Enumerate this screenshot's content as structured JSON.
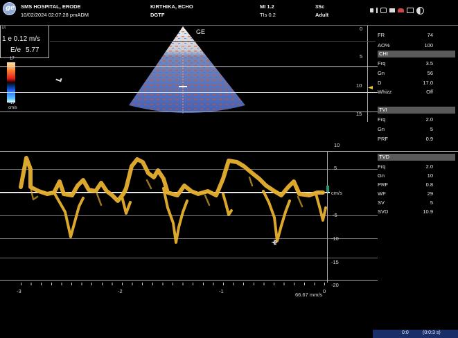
{
  "header": {
    "hospital": "SMS HOSPITAL, ERODE",
    "datetime": "10/02/2024 02:07:28 pmADM",
    "patient": "KIRTHIKA, ECHO",
    "preset": "DGTF",
    "mi": "MI 1.2",
    "tis": "TIs 0.2",
    "probe": "3Sc",
    "mode": "Adult"
  },
  "measure": {
    "label_top": "M",
    "e_value": "1 e 0.12 m/s",
    "ee_label": "E/e",
    "ee_value": "5.77"
  },
  "colorbar": {
    "top": "17",
    "bottom": "-17",
    "unit": "cm/s"
  },
  "sector": {
    "brand": "GE"
  },
  "depth_ticks": [
    "0",
    "5",
    "10",
    "15"
  ],
  "params": [
    {
      "k": "FR",
      "v": "74"
    },
    {
      "k": "AO%",
      "v": "100"
    }
  ],
  "sections": [
    {
      "title": "CHI",
      "rows": [
        {
          "k": "Frq",
          "v": "3.5"
        },
        {
          "k": "Gn",
          "v": "56"
        },
        {
          "k": "D",
          "v": "17.0"
        },
        {
          "k": "Whizz",
          "v": "Off"
        }
      ]
    },
    {
      "title": "TVI",
      "rows": [
        {
          "k": "Frq",
          "v": "2.0"
        },
        {
          "k": "Gn",
          "v": "5"
        },
        {
          "k": "PRF",
          "v": "0.9"
        }
      ]
    },
    {
      "title": "TVD",
      "rows": [
        {
          "k": "Frq",
          "v": "2.0"
        },
        {
          "k": "Gn",
          "v": "10"
        },
        {
          "k": "PRF",
          "v": "0.8"
        },
        {
          "k": "WF",
          "v": "29"
        },
        {
          "k": "SV",
          "v": "5"
        },
        {
          "k": "SVD",
          "v": "10.9"
        }
      ]
    }
  ],
  "velocity_scale": {
    "unit": "cm/s",
    "ticks": [
      "10",
      "5",
      "-5",
      "-10",
      "-15",
      "-20"
    ]
  },
  "time_axis": {
    "ticks": [
      "-3",
      "-2",
      "-1",
      "0"
    ],
    "speed": "66.67 mm/s"
  },
  "footer": {
    "left": "0:0",
    "right": "(0:0:3 s)"
  },
  "colors": {
    "doppler": "#e8b030",
    "baseline": "#e8e8e8",
    "section_bg": "#5a5a5a"
  }
}
